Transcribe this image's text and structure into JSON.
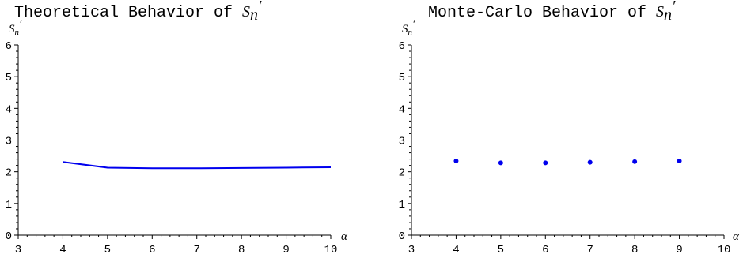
{
  "chart_data": [
    {
      "type": "line",
      "title": "Theoretical Behavior of ",
      "title_var": "S",
      "title_sub": "n",
      "title_prime": "′",
      "xlabel": "α",
      "ylabel_var": "S",
      "ylabel_sub": "n",
      "ylabel_prime": "′",
      "xlim": [
        3,
        10
      ],
      "ylim": [
        0,
        6
      ],
      "xticks": [
        3,
        4,
        5,
        6,
        7,
        8,
        9,
        10
      ],
      "yticks": [
        0,
        1,
        2,
        3,
        4,
        5,
        6
      ],
      "color": "#0000ee",
      "series": [
        {
          "x": [
            4,
            5,
            6,
            7,
            8,
            9,
            10
          ],
          "y": [
            2.31,
            2.13,
            2.11,
            2.11,
            2.12,
            2.13,
            2.14
          ]
        }
      ]
    },
    {
      "type": "scatter",
      "title": "Monte-Carlo Behavior of ",
      "title_var": "S",
      "title_sub": "n",
      "title_prime": "′",
      "xlabel": "α",
      "ylabel_var": "S",
      "ylabel_sub": "n",
      "ylabel_prime": "′",
      "xlim": [
        3,
        10
      ],
      "ylim": [
        0,
        6
      ],
      "xticks": [
        3,
        4,
        5,
        6,
        7,
        8,
        9,
        10
      ],
      "yticks": [
        0,
        1,
        2,
        3,
        4,
        5,
        6
      ],
      "color": "#0000ee",
      "series": [
        {
          "x": [
            4,
            5,
            6,
            7,
            8,
            9
          ],
          "y": [
            2.34,
            2.28,
            2.28,
            2.3,
            2.32,
            2.34
          ]
        }
      ]
    }
  ]
}
